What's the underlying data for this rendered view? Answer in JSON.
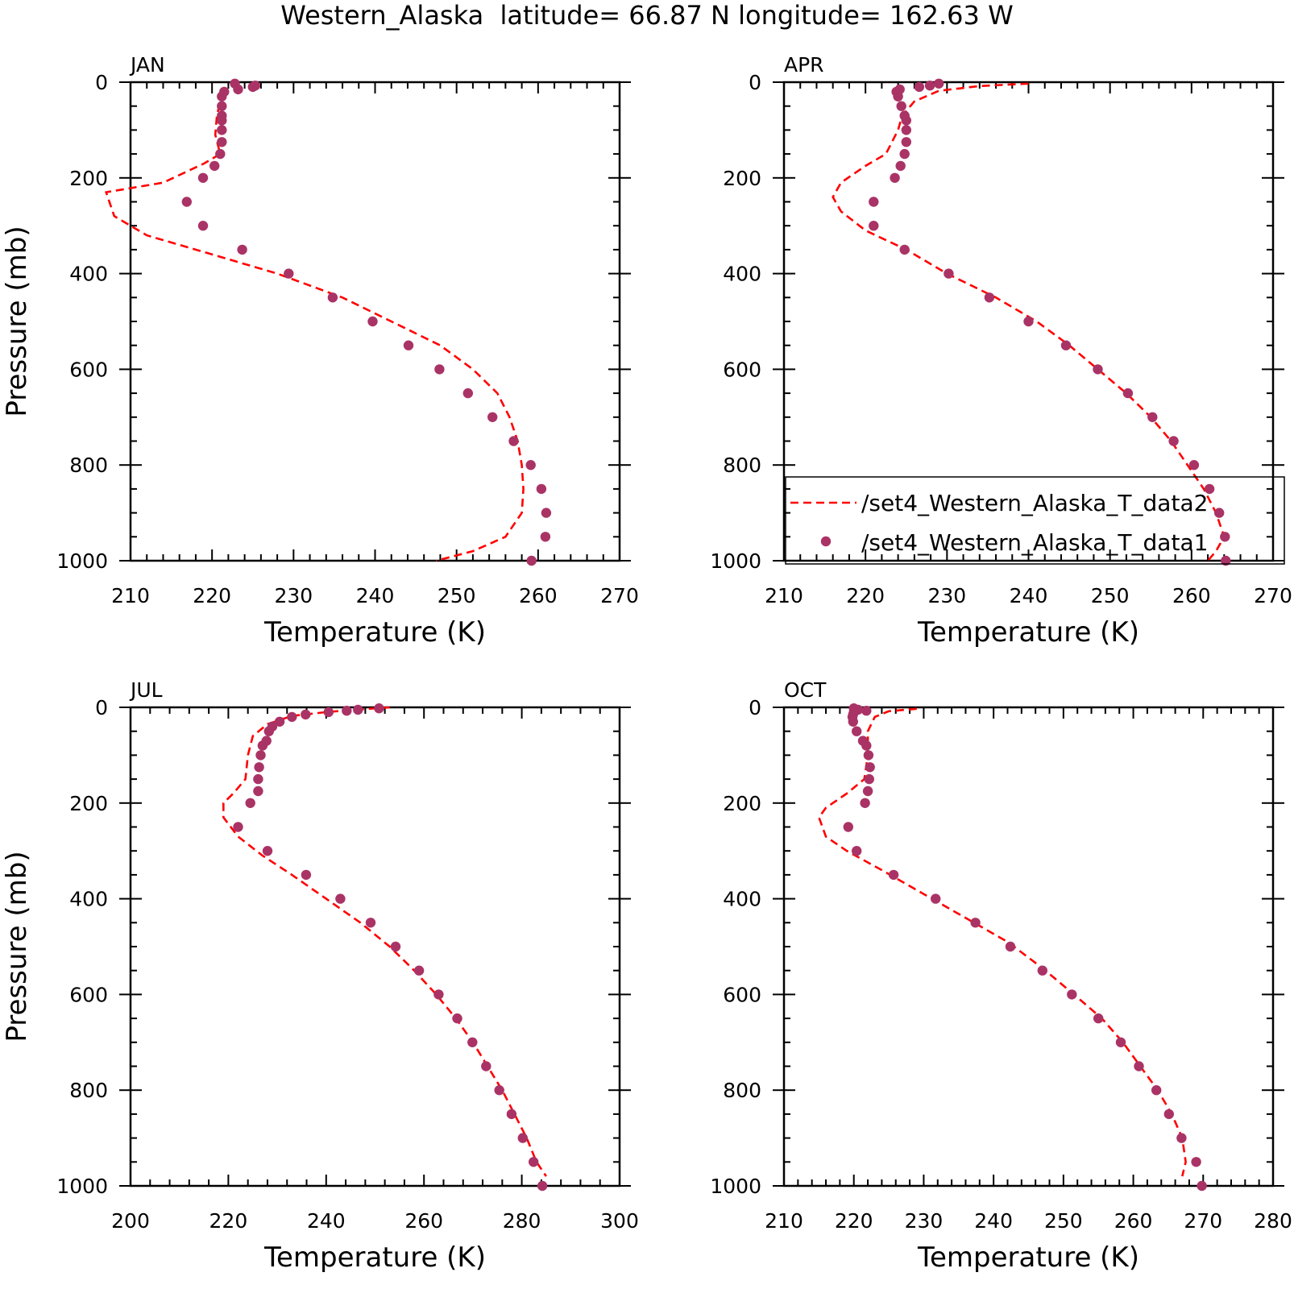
{
  "figure_title": "Western_Alaska  latitude= 66.87 N longitude= 162.63 W",
  "colors": {
    "model": "#ff0000",
    "obs": "#aa3366",
    "axis": "#000000"
  },
  "legend": {
    "dashed_label": "/set4_Western_Alaska_T_data2",
    "dots_label": "/set4_Western_Alaska_T_data1"
  },
  "chart_data": [
    {
      "type": "line",
      "panel_label": "JAN",
      "xlabel": "Temperature (K)",
      "ylabel": "Pressure (mb)",
      "xlim": [
        210,
        270
      ],
      "ylim": [
        1000,
        0
      ],
      "xticks": [
        210,
        220,
        230,
        240,
        250,
        260,
        270
      ],
      "yticks": [
        0,
        200,
        400,
        600,
        800,
        1000
      ],
      "grid": false,
      "series": [
        {
          "name": "/set4_Western_Alaska_T_data2",
          "style": "dashed",
          "points": [
            [
              221.4,
              20
            ],
            [
              221.0,
              40
            ],
            [
              220.6,
              70
            ],
            [
              220.4,
              110
            ],
            [
              221.0,
              150
            ],
            [
              219.0,
              170
            ],
            [
              214.0,
              210
            ],
            [
              207.0,
              230
            ],
            [
              208.0,
              280
            ],
            [
              212.0,
              320
            ],
            [
              220.0,
              360
            ],
            [
              228.0,
              400
            ],
            [
              236.0,
              450
            ],
            [
              242.0,
              500
            ],
            [
              248.0,
              550
            ],
            [
              252.0,
              600
            ],
            [
              255.0,
              650
            ],
            [
              256.5,
              700
            ],
            [
              257.5,
              750
            ],
            [
              258.0,
              800
            ],
            [
              258.2,
              850
            ],
            [
              258.0,
              900
            ],
            [
              256.0,
              950
            ],
            [
              252.0,
              980
            ],
            [
              247.5,
              1000
            ]
          ]
        },
        {
          "name": "/set4_Western_Alaska_T_data1",
          "style": "dots",
          "points": [
            [
              225.3,
              7
            ],
            [
              225.0,
              10
            ],
            [
              223.2,
              15
            ],
            [
              222.8,
              3
            ],
            [
              221.5,
              20
            ],
            [
              221.2,
              30
            ],
            [
              221.2,
              50
            ],
            [
              221.2,
              70
            ],
            [
              221.2,
              80
            ],
            [
              221.2,
              100
            ],
            [
              221.2,
              125
            ],
            [
              221.0,
              150
            ],
            [
              220.3,
              175
            ],
            [
              218.9,
              200
            ],
            [
              216.9,
              250
            ],
            [
              218.9,
              300
            ],
            [
              223.7,
              350
            ],
            [
              229.4,
              400
            ],
            [
              234.8,
              450
            ],
            [
              239.7,
              500
            ],
            [
              244.1,
              550
            ],
            [
              247.9,
              600
            ],
            [
              251.4,
              650
            ],
            [
              254.4,
              700
            ],
            [
              257.0,
              750
            ],
            [
              259.1,
              800
            ],
            [
              260.4,
              850
            ],
            [
              261.0,
              900
            ],
            [
              260.9,
              950
            ],
            [
              259.2,
              1000
            ]
          ]
        }
      ]
    },
    {
      "type": "line",
      "panel_label": "APR",
      "xlabel": "Temperature (K)",
      "ylabel": "",
      "xlim": [
        210,
        270
      ],
      "ylim": [
        1000,
        0
      ],
      "xticks": [
        210,
        220,
        230,
        240,
        250,
        260,
        270
      ],
      "yticks": [
        0,
        200,
        400,
        600,
        800,
        1000
      ],
      "grid": false,
      "legend_position": "bottom-right",
      "series": [
        {
          "name": "/set4_Western_Alaska_T_data2",
          "style": "dashed",
          "points": [
            [
              240.0,
              3
            ],
            [
              234.0,
              8
            ],
            [
              229.0,
              18
            ],
            [
              226.0,
              40
            ],
            [
              224.5,
              70
            ],
            [
              224.0,
              100
            ],
            [
              222.5,
              150
            ],
            [
              220.0,
              175
            ],
            [
              217.0,
              210
            ],
            [
              216.0,
              240
            ],
            [
              217.0,
              270
            ],
            [
              220.0,
              310
            ],
            [
              225.0,
              350
            ],
            [
              230.0,
              400
            ],
            [
              236.0,
              450
            ],
            [
              241.0,
              500
            ],
            [
              245.0,
              550
            ],
            [
              248.5,
              600
            ],
            [
              252.0,
              650
            ],
            [
              255.0,
              700
            ],
            [
              257.5,
              750
            ],
            [
              259.5,
              800
            ],
            [
              261.5,
              850
            ],
            [
              263.0,
              900
            ],
            [
              264.0,
              950
            ],
            [
              263.0,
              980
            ],
            [
              262.0,
              1000
            ]
          ]
        },
        {
          "name": "/set4_Western_Alaska_T_data1",
          "style": "dots",
          "points": [
            [
              229.0,
              3
            ],
            [
              227.9,
              7
            ],
            [
              226.6,
              10
            ],
            [
              224.2,
              15
            ],
            [
              223.8,
              20
            ],
            [
              224.0,
              30
            ],
            [
              224.4,
              50
            ],
            [
              224.8,
              70
            ],
            [
              225.0,
              80
            ],
            [
              225.0,
              100
            ],
            [
              225.0,
              125
            ],
            [
              224.8,
              150
            ],
            [
              224.3,
              175
            ],
            [
              223.6,
              200
            ],
            [
              221.0,
              250
            ],
            [
              221.0,
              300
            ],
            [
              224.8,
              350
            ],
            [
              230.2,
              400
            ],
            [
              235.2,
              450
            ],
            [
              240.0,
              500
            ],
            [
              244.6,
              550
            ],
            [
              248.5,
              600
            ],
            [
              252.2,
              650
            ],
            [
              255.2,
              700
            ],
            [
              257.8,
              750
            ],
            [
              260.3,
              800
            ],
            [
              262.2,
              850
            ],
            [
              263.4,
              900
            ],
            [
              264.1,
              950
            ],
            [
              264.2,
              1000
            ]
          ]
        }
      ]
    },
    {
      "type": "line",
      "panel_label": "JUL",
      "xlabel": "Temperature (K)",
      "ylabel": "Pressure (mb)",
      "xlim": [
        200,
        300
      ],
      "ylim": [
        1000,
        0
      ],
      "xticks": [
        200,
        220,
        240,
        260,
        280,
        300
      ],
      "yticks": [
        0,
        200,
        400,
        600,
        800,
        1000
      ],
      "grid": false,
      "series": [
        {
          "name": "/set4_Western_Alaska_T_data2",
          "style": "dashed",
          "points": [
            [
              253.0,
              0
            ],
            [
              246.0,
              5
            ],
            [
              240.0,
              10
            ],
            [
              233.0,
              18
            ],
            [
              228.0,
              35
            ],
            [
              225.0,
              60
            ],
            [
              224.0,
              100
            ],
            [
              223.5,
              150
            ],
            [
              221.0,
              180
            ],
            [
              219.0,
              200
            ],
            [
              219.0,
              230
            ],
            [
              222.0,
              270
            ],
            [
              227.0,
              310
            ],
            [
              233.0,
              350
            ],
            [
              240.0,
              400
            ],
            [
              247.0,
              450
            ],
            [
              253.0,
              500
            ],
            [
              258.0,
              550
            ],
            [
              262.5,
              600
            ],
            [
              266.5,
              650
            ],
            [
              270.0,
              700
            ],
            [
              273.0,
              750
            ],
            [
              276.0,
              800
            ],
            [
              278.5,
              850
            ],
            [
              281.0,
              900
            ],
            [
              283.0,
              950
            ],
            [
              285.0,
              980
            ]
          ]
        },
        {
          "name": "/set4_Western_Alaska_T_data1",
          "style": "dots",
          "points": [
            [
              250.8,
              2
            ],
            [
              246.5,
              5
            ],
            [
              244.2,
              7
            ],
            [
              240.5,
              10
            ],
            [
              235.8,
              15
            ],
            [
              233.0,
              20
            ],
            [
              230.5,
              30
            ],
            [
              229.0,
              40
            ],
            [
              228.3,
              50
            ],
            [
              227.8,
              70
            ],
            [
              227.0,
              80
            ],
            [
              226.6,
              100
            ],
            [
              226.3,
              125
            ],
            [
              226.1,
              150
            ],
            [
              226.1,
              175
            ],
            [
              224.5,
              200
            ],
            [
              222.0,
              250
            ],
            [
              228.0,
              300
            ],
            [
              235.9,
              350
            ],
            [
              242.9,
              400
            ],
            [
              249.1,
              450
            ],
            [
              254.2,
              500
            ],
            [
              259.0,
              550
            ],
            [
              263.0,
              600
            ],
            [
              266.8,
              650
            ],
            [
              269.9,
              700
            ],
            [
              272.7,
              750
            ],
            [
              275.4,
              800
            ],
            [
              277.9,
              850
            ],
            [
              280.2,
              900
            ],
            [
              282.4,
              950
            ],
            [
              284.2,
              1000
            ]
          ]
        }
      ]
    },
    {
      "type": "line",
      "panel_label": "OCT",
      "xlabel": "Temperature (K)",
      "ylabel": "",
      "xlim": [
        210,
        280
      ],
      "ylim": [
        1000,
        0
      ],
      "xticks": [
        210,
        220,
        230,
        240,
        250,
        260,
        270,
        280
      ],
      "yticks": [
        0,
        200,
        400,
        600,
        800,
        1000
      ],
      "grid": false,
      "series": [
        {
          "name": "/set4_Western_Alaska_T_data2",
          "style": "dashed",
          "points": [
            [
              229.0,
              3
            ],
            [
              225.0,
              8
            ],
            [
              223.0,
              20
            ],
            [
              222.0,
              50
            ],
            [
              222.0,
              100
            ],
            [
              221.5,
              150
            ],
            [
              219.0,
              180
            ],
            [
              216.0,
              210
            ],
            [
              215.0,
              230
            ],
            [
              216.0,
              270
            ],
            [
              219.0,
              300
            ],
            [
              224.0,
              340
            ],
            [
              230.0,
              390
            ],
            [
              236.0,
              440
            ],
            [
              242.0,
              490
            ],
            [
              247.0,
              545
            ],
            [
              251.5,
              600
            ],
            [
              255.5,
              650
            ],
            [
              258.5,
              700
            ],
            [
              261.0,
              750
            ],
            [
              263.5,
              800
            ],
            [
              265.5,
              850
            ],
            [
              267.0,
              900
            ],
            [
              267.5,
              950
            ],
            [
              267.0,
              980
            ]
          ]
        },
        {
          "name": "/set4_Western_Alaska_T_data1",
          "style": "dots",
          "points": [
            [
              220.0,
              2
            ],
            [
              220.6,
              5
            ],
            [
              221.8,
              7
            ],
            [
              220.0,
              10
            ],
            [
              219.9,
              15
            ],
            [
              219.8,
              20
            ],
            [
              219.9,
              30
            ],
            [
              220.4,
              50
            ],
            [
              221.3,
              70
            ],
            [
              221.8,
              80
            ],
            [
              222.1,
              100
            ],
            [
              222.3,
              125
            ],
            [
              222.2,
              150
            ],
            [
              222.0,
              175
            ],
            [
              221.6,
              200
            ],
            [
              219.2,
              250
            ],
            [
              220.4,
              300
            ],
            [
              225.7,
              350
            ],
            [
              231.7,
              400
            ],
            [
              237.4,
              450
            ],
            [
              242.4,
              500
            ],
            [
              247.0,
              550
            ],
            [
              251.2,
              600
            ],
            [
              255.0,
              650
            ],
            [
              258.2,
              700
            ],
            [
              260.8,
              750
            ],
            [
              263.3,
              800
            ],
            [
              265.1,
              850
            ],
            [
              266.9,
              900
            ],
            [
              269.0,
              950
            ],
            [
              269.8,
              1000
            ]
          ]
        }
      ]
    }
  ]
}
